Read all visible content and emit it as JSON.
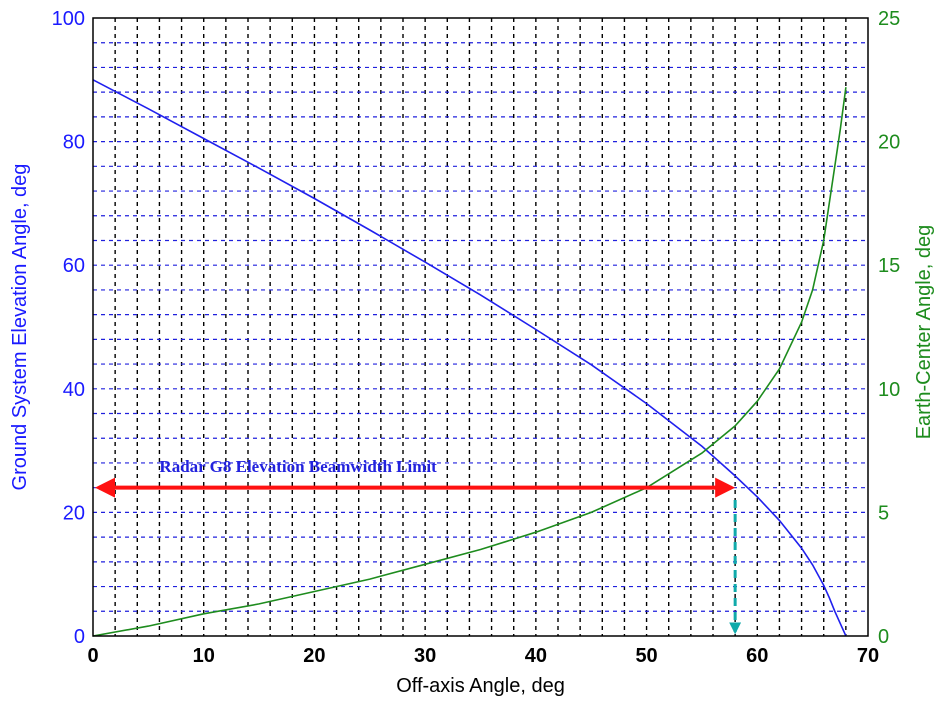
{
  "chart_data": {
    "type": "line",
    "x_axis": {
      "label": "Off-axis Angle, deg",
      "range": [
        0,
        70
      ],
      "ticks": [
        0,
        10,
        20,
        30,
        40,
        50,
        60,
        70
      ]
    },
    "y_axis_left": {
      "label": "Ground System Elevation Angle, deg",
      "range": [
        0,
        100
      ],
      "ticks": [
        0,
        20,
        40,
        60,
        80,
        100
      ]
    },
    "y_axis_right": {
      "label": "Earth-Center Angle, deg",
      "range": [
        0,
        25
      ],
      "ticks": [
        0,
        5,
        10,
        15,
        20,
        25
      ]
    },
    "grid": true,
    "series": [
      {
        "axis": "left",
        "color": "#2020ee",
        "x": [
          0,
          5,
          10,
          15,
          20,
          25,
          30,
          35,
          40,
          45,
          50,
          55,
          58,
          60,
          62,
          64,
          65,
          66,
          66.5,
          67,
          67.5,
          68
        ],
        "y": [
          90,
          85.3,
          80.5,
          75.7,
          70.8,
          65.7,
          60.5,
          55.2,
          49.6,
          43.9,
          37.6,
          30.7,
          25.9,
          22.5,
          18.7,
          14.2,
          11.5,
          8.2,
          6.2,
          4,
          2,
          0
        ]
      },
      {
        "axis": "right",
        "color": "#1e8c1e",
        "x": [
          0,
          5,
          10,
          15,
          20,
          25,
          30,
          35,
          40,
          45,
          50,
          55,
          58,
          60,
          62,
          64,
          65,
          66,
          67,
          67.5,
          68
        ],
        "y": [
          0,
          0.4,
          0.9,
          1.3,
          1.8,
          2.3,
          2.9,
          3.5,
          4.2,
          5,
          6,
          7.4,
          8.5,
          9.5,
          10.8,
          12.7,
          14,
          16,
          19,
          20.5,
          22.2
        ]
      }
    ],
    "annotations": [
      {
        "type": "double-arrow",
        "color": "#ff1111",
        "x": [
          0,
          58
        ],
        "y_left": 24
      },
      {
        "type": "dashed-arrow-down",
        "color": "#11aaaa",
        "x": 58,
        "y_left": [
          22,
          0
        ]
      },
      {
        "type": "text",
        "text": "Radar G8 Elevation Beamwidth Limit",
        "color": "#2222dd",
        "x": 6,
        "y_left": 26.5
      }
    ]
  }
}
